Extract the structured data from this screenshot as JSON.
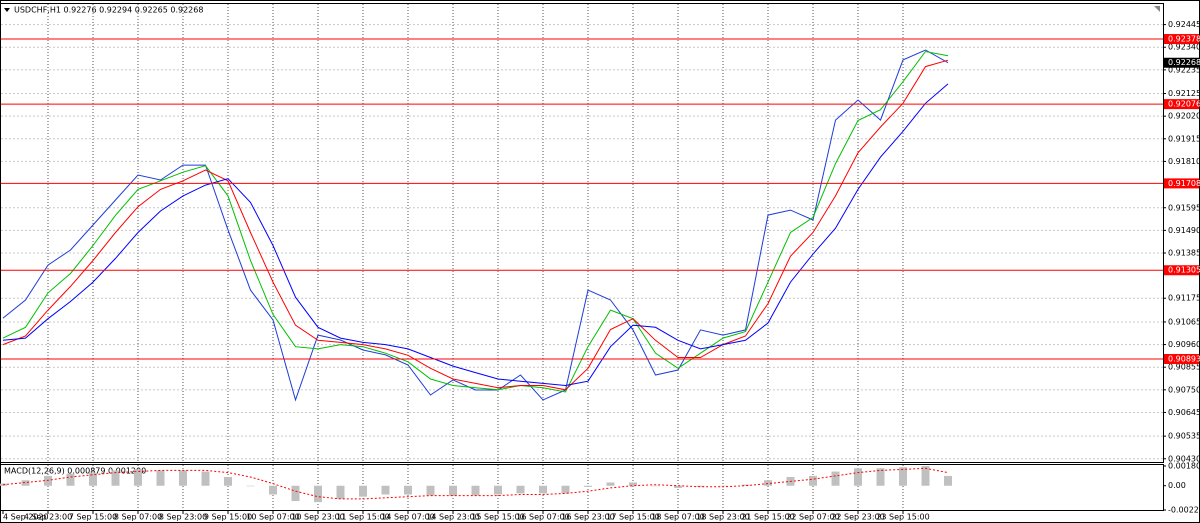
{
  "chart_data": [
    {
      "type": "line",
      "title": "USDCHF,H1  0.92276 0.92294 0.92265 0.92268",
      "categories": [
        "4 Sep 2020",
        null,
        "4 Sep 23:00",
        null,
        "7 Sep 15:00",
        null,
        "8 Sep 07:00",
        null,
        "8 Sep 23:00",
        null,
        "9 Sep 15:00",
        null,
        "10 Sep 07:00",
        null,
        "10 Sep 23:00",
        null,
        "11 Sep 15:00",
        null,
        "14 Sep 07:00",
        null,
        "14 Sep 23:00",
        null,
        "15 Sep 15:00",
        null,
        "16 Sep 07:00",
        null,
        "16 Sep 23:00",
        null,
        "17 Sep 15:00",
        null,
        "18 Sep 07:00",
        null,
        "18 Sep 23:00",
        null,
        "21 Sep 15:00",
        null,
        "22 Sep 07:00",
        null,
        "22 Sep 23:00",
        null,
        "23 Sep 15:00",
        null,
        null
      ],
      "series": [
        {
          "color": "#1e3cdc",
          "values": [
            0.91083,
            0.91167,
            0.91329,
            0.91399,
            0.91515,
            0.91631,
            0.91747,
            0.91724,
            0.91793,
            0.91793,
            0.91492,
            0.91213,
            0.91074,
            0.90703,
            0.91004,
            0.90981,
            0.90935,
            0.90912,
            0.90865,
            0.90726,
            0.90796,
            0.90749,
            0.90749,
            0.90819,
            0.90703,
            0.90749,
            0.91213,
            0.91167,
            0.91028,
            0.90819,
            0.90842,
            0.91028,
            0.91004,
            0.91028,
            0.91561,
            0.91584,
            0.91538,
            0.92002,
            0.92095,
            0.92002,
            0.92281,
            0.92327,
            0.92268
          ]
        },
        {
          "color": "#00c000",
          "values": [
            0.9099,
            0.9104,
            0.912,
            0.9129,
            0.9142,
            0.9156,
            0.9168,
            0.9172,
            0.9176,
            0.9179,
            0.9165,
            0.9135,
            0.911,
            0.9095,
            0.9094,
            0.9096,
            0.9095,
            0.9092,
            0.9088,
            0.908,
            0.9077,
            0.9076,
            0.9075,
            0.9077,
            0.9076,
            0.9074,
            0.9095,
            0.9112,
            0.9108,
            0.9092,
            0.9085,
            0.9092,
            0.9099,
            0.9102,
            0.9125,
            0.9148,
            0.9155,
            0.918,
            0.92,
            0.9205,
            0.9218,
            0.9232,
            0.923
          ]
        },
        {
          "color": "#ff0000",
          "values": [
            0.9096,
            0.91,
            0.9112,
            0.9123,
            0.9135,
            0.9148,
            0.916,
            0.9168,
            0.9172,
            0.9177,
            0.9172,
            0.9148,
            0.9125,
            0.9105,
            0.9098,
            0.9097,
            0.9096,
            0.9094,
            0.9091,
            0.9085,
            0.908,
            0.9078,
            0.9076,
            0.9077,
            0.9077,
            0.9075,
            0.9085,
            0.9103,
            0.9108,
            0.9098,
            0.909,
            0.909,
            0.9096,
            0.91,
            0.9115,
            0.9137,
            0.9148,
            0.9165,
            0.9185,
            0.9197,
            0.9208,
            0.9225,
            0.9228
          ]
        },
        {
          "color": "#0000ff",
          "values": [
            0.9098,
            0.9099,
            0.9108,
            0.9116,
            0.9125,
            0.9136,
            0.9148,
            0.9158,
            0.9165,
            0.917,
            0.9173,
            0.9162,
            0.9142,
            0.9118,
            0.9104,
            0.9099,
            0.9097,
            0.9096,
            0.9094,
            0.909,
            0.9086,
            0.9083,
            0.908,
            0.9079,
            0.9078,
            0.9077,
            0.9079,
            0.9095,
            0.9105,
            0.9104,
            0.9098,
            0.9094,
            0.9096,
            0.9098,
            0.9106,
            0.9125,
            0.9138,
            0.915,
            0.9168,
            0.9183,
            0.9195,
            0.9208,
            0.9217
          ]
        }
      ],
      "ylim": [
        0.90415,
        0.92536
      ],
      "yticks": [
        0.92445,
        {
          "value": 0.9234,
          "label": "0.92340"
        },
        0.92235,
        0.92125,
        {
          "value": 0.9202,
          "label": "0.92020"
        },
        0.91915,
        {
          "value": 0.9181,
          "label": "0.91810"
        },
        0.91595,
        {
          "value": 0.9149,
          "label": "0.91490"
        },
        0.91385,
        0.91175,
        0.91065,
        {
          "value": 0.9096,
          "label": "0.90960"
        },
        0.90855,
        {
          "value": 0.9075,
          "label": "0.90750"
        },
        0.90645,
        0.90535,
        {
          "value": 0.9043,
          "label": "0.90430"
        }
      ],
      "grid": true,
      "price_lines": [
        {
          "value": 0.92378,
          "color": "#ff0000"
        },
        {
          "value": 0.92076,
          "color": "#ff0000"
        },
        {
          "value": 0.91708,
          "color": "#ff0000"
        },
        {
          "value": 0.91305,
          "color": "#ff0000"
        },
        {
          "value": 0.90893,
          "color": "#ff0000"
        }
      ],
      "last_price": {
        "value": 0.92268,
        "color": "#000000"
      }
    },
    {
      "type": "bar",
      "title": "MACD(12,26,9) 0.000879 0.001200",
      "values": [
        0.0002,
        0.0005,
        0.0009,
        0.0011,
        0.0012,
        0.0014,
        0.0015,
        0.0014,
        0.0014,
        0.0013,
        0.0008,
        0.0,
        -0.0008,
        -0.0014,
        -0.0015,
        -0.0012,
        -0.001,
        -0.0008,
        -0.0008,
        -0.0009,
        -0.0009,
        -0.0009,
        -0.0008,
        -0.0007,
        -0.0007,
        -0.0007,
        -0.0001,
        0.0003,
        0.0003,
        0.0,
        -0.0002,
        -0.0001,
        0.0,
        0.0001,
        0.0005,
        0.0008,
        0.0009,
        0.0013,
        0.0016,
        0.0016,
        0.0017,
        0.0018,
        0.0009
      ],
      "color": "#c0c0c0",
      "signal": {
        "color": "#ff0000",
        "values": [
          0.0001,
          0.0003,
          0.0005,
          0.0008,
          0.001,
          0.0012,
          0.0013,
          0.0014,
          0.0014,
          0.0014,
          0.0012,
          0.0008,
          0.0002,
          -0.0005,
          -0.001,
          -0.0012,
          -0.0012,
          -0.0011,
          -0.001,
          -0.0009,
          -0.0009,
          -0.0009,
          -0.0009,
          -0.0008,
          -0.0008,
          -0.0007,
          -0.0005,
          -0.0002,
          0.0,
          0.0001,
          0.0,
          -0.0001,
          -0.0001,
          0.0,
          0.0002,
          0.0004,
          0.0006,
          0.0009,
          0.0012,
          0.0014,
          0.0015,
          0.0016,
          0.0012
        ]
      },
      "ylim": [
        -0.002219,
        0.001807
      ],
      "yticks": [
        0.001807,
        {
          "value": 0,
          "label": "0.00"
        },
        -0.002219
      ]
    }
  ]
}
